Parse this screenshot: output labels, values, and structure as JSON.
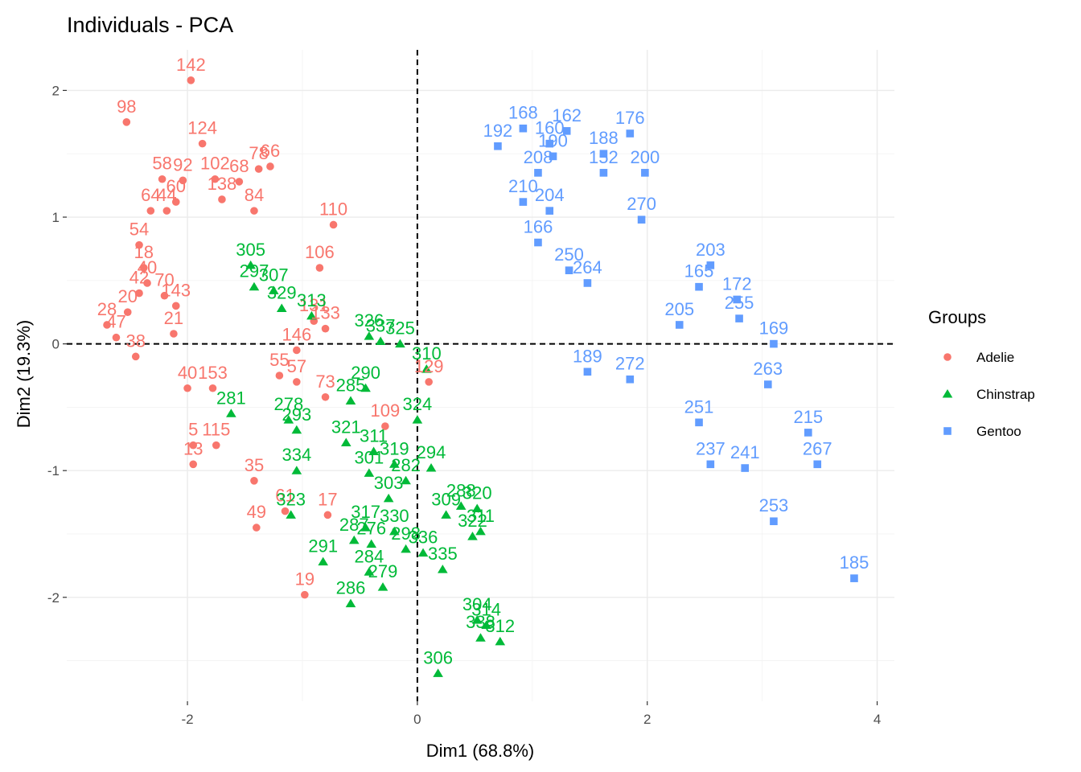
{
  "chart_data": {
    "type": "scatter",
    "title": "Individuals - PCA",
    "xlabel": "Dim1 (68.8%)",
    "ylabel": "Dim2 (19.3%)",
    "xlim": [
      -3.05,
      4.15
    ],
    "ylim": [
      -2.82,
      2.32
    ],
    "xticks": [
      -2,
      0,
      2,
      4
    ],
    "yticks": [
      -2,
      -1,
      0,
      1,
      2
    ],
    "xtick_labels": [
      "-2",
      "0",
      "2",
      "4"
    ],
    "ytick_labels": [
      "-2",
      "-1",
      "0",
      "1",
      "2"
    ],
    "grid": true,
    "reference_lines": {
      "x": 0,
      "y": 0,
      "style": "dashed"
    },
    "legend": {
      "title": "Groups",
      "position": "right",
      "entries": [
        "Adelie",
        "Chinstrap",
        "Gentoo"
      ]
    },
    "series": [
      {
        "name": "Adelie",
        "color": "#F8766D",
        "marker": "circle",
        "points": [
          {
            "label": "142",
            "x": -1.97,
            "y": 2.08
          },
          {
            "label": "98",
            "x": -2.53,
            "y": 1.75
          },
          {
            "label": "124",
            "x": -1.87,
            "y": 1.58
          },
          {
            "label": "78",
            "x": -1.38,
            "y": 1.38
          },
          {
            "label": "66",
            "x": -1.28,
            "y": 1.4
          },
          {
            "label": "58",
            "x": -2.22,
            "y": 1.3
          },
          {
            "label": "92",
            "x": -2.04,
            "y": 1.29
          },
          {
            "label": "102",
            "x": -1.76,
            "y": 1.3
          },
          {
            "label": "68",
            "x": -1.55,
            "y": 1.28
          },
          {
            "label": "60",
            "x": -2.1,
            "y": 1.12
          },
          {
            "label": "138",
            "x": -1.7,
            "y": 1.14
          },
          {
            "label": "64",
            "x": -2.32,
            "y": 1.05
          },
          {
            "label": "44",
            "x": -2.18,
            "y": 1.05
          },
          {
            "label": "84",
            "x": -1.42,
            "y": 1.05
          },
          {
            "label": "110",
            "x": -0.73,
            "y": 0.94
          },
          {
            "label": "54",
            "x": -2.42,
            "y": 0.78
          },
          {
            "label": "18",
            "x": -2.38,
            "y": 0.6
          },
          {
            "label": "40",
            "x": -2.35,
            "y": 0.48
          },
          {
            "label": "42",
            "x": -2.42,
            "y": 0.4
          },
          {
            "label": "70",
            "x": -2.2,
            "y": 0.38
          },
          {
            "label": "106",
            "x": -0.85,
            "y": 0.6
          },
          {
            "label": "20",
            "x": -2.52,
            "y": 0.25
          },
          {
            "label": "143",
            "x": -2.1,
            "y": 0.3
          },
          {
            "label": "28",
            "x": -2.7,
            "y": 0.15
          },
          {
            "label": "47",
            "x": -2.62,
            "y": 0.05
          },
          {
            "label": "21",
            "x": -2.12,
            "y": 0.08
          },
          {
            "label": "38",
            "x": -2.45,
            "y": -0.1
          },
          {
            "label": "131",
            "x": -0.9,
            "y": 0.18
          },
          {
            "label": "133",
            "x": -0.8,
            "y": 0.12
          },
          {
            "label": "146",
            "x": -1.05,
            "y": -0.05
          },
          {
            "label": "40",
            "x": -2.0,
            "y": -0.35
          },
          {
            "label": "153",
            "x": -1.78,
            "y": -0.35
          },
          {
            "label": "55",
            "x": -1.2,
            "y": -0.25
          },
          {
            "label": "57",
            "x": -1.05,
            "y": -0.3
          },
          {
            "label": "73",
            "x": -0.8,
            "y": -0.42
          },
          {
            "label": "109",
            "x": -0.28,
            "y": -0.65
          },
          {
            "label": "129",
            "x": 0.1,
            "y": -0.3
          },
          {
            "label": "5",
            "x": -1.95,
            "y": -0.8
          },
          {
            "label": "115",
            "x": -1.75,
            "y": -0.8
          },
          {
            "label": "13",
            "x": -1.95,
            "y": -0.95
          },
          {
            "label": "35",
            "x": -1.42,
            "y": -1.08
          },
          {
            "label": "61",
            "x": -1.15,
            "y": -1.32
          },
          {
            "label": "17",
            "x": -0.78,
            "y": -1.35
          },
          {
            "label": "49",
            "x": -1.4,
            "y": -1.45
          },
          {
            "label": "19",
            "x": -0.98,
            "y": -1.98
          }
        ]
      },
      {
        "name": "Chinstrap",
        "color": "#00BA38",
        "marker": "triangle",
        "points": [
          {
            "label": "305",
            "x": -1.45,
            "y": 0.62
          },
          {
            "label": "297",
            "x": -1.42,
            "y": 0.45
          },
          {
            "label": "307",
            "x": -1.25,
            "y": 0.42
          },
          {
            "label": "329",
            "x": -1.18,
            "y": 0.28
          },
          {
            "label": "313",
            "x": -0.92,
            "y": 0.22
          },
          {
            "label": "326",
            "x": -0.42,
            "y": 0.06
          },
          {
            "label": "337",
            "x": -0.32,
            "y": 0.02
          },
          {
            "label": "325",
            "x": -0.15,
            "y": 0.0
          },
          {
            "label": "310",
            "x": 0.08,
            "y": -0.2
          },
          {
            "label": "290",
            "x": -0.45,
            "y": -0.35
          },
          {
            "label": "285",
            "x": -0.58,
            "y": -0.45
          },
          {
            "label": "281",
            "x": -1.62,
            "y": -0.55
          },
          {
            "label": "278",
            "x": -1.12,
            "y": -0.6
          },
          {
            "label": "293",
            "x": -1.05,
            "y": -0.68
          },
          {
            "label": "324",
            "x": 0.0,
            "y": -0.6
          },
          {
            "label": "321",
            "x": -0.62,
            "y": -0.78
          },
          {
            "label": "311",
            "x": -0.38,
            "y": -0.85
          },
          {
            "label": "334",
            "x": -1.05,
            "y": -1.0
          },
          {
            "label": "319",
            "x": -0.2,
            "y": -0.95
          },
          {
            "label": "294",
            "x": 0.12,
            "y": -0.98
          },
          {
            "label": "301",
            "x": -0.42,
            "y": -1.02
          },
          {
            "label": "282",
            "x": -0.1,
            "y": -1.08
          },
          {
            "label": "288",
            "x": 0.38,
            "y": -1.28
          },
          {
            "label": "320",
            "x": 0.52,
            "y": -1.3
          },
          {
            "label": "323",
            "x": -1.1,
            "y": -1.35
          },
          {
            "label": "303",
            "x": -0.25,
            "y": -1.22
          },
          {
            "label": "309",
            "x": 0.25,
            "y": -1.35
          },
          {
            "label": "317",
            "x": -0.45,
            "y": -1.45
          },
          {
            "label": "330",
            "x": -0.2,
            "y": -1.48
          },
          {
            "label": "322",
            "x": 0.48,
            "y": -1.52
          },
          {
            "label": "311",
            "x": 0.55,
            "y": -1.48
          },
          {
            "label": "287",
            "x": -0.55,
            "y": -1.55
          },
          {
            "label": "276",
            "x": -0.4,
            "y": -1.58
          },
          {
            "label": "298",
            "x": -0.1,
            "y": -1.62
          },
          {
            "label": "336",
            "x": 0.05,
            "y": -1.65
          },
          {
            "label": "291",
            "x": -0.82,
            "y": -1.72
          },
          {
            "label": "335",
            "x": 0.22,
            "y": -1.78
          },
          {
            "label": "284",
            "x": -0.42,
            "y": -1.8
          },
          {
            "label": "279",
            "x": -0.3,
            "y": -1.92
          },
          {
            "label": "286",
            "x": -0.58,
            "y": -2.05
          },
          {
            "label": "304",
            "x": 0.52,
            "y": -2.18
          },
          {
            "label": "314",
            "x": 0.6,
            "y": -2.22
          },
          {
            "label": "338",
            "x": 0.55,
            "y": -2.32
          },
          {
            "label": "312",
            "x": 0.72,
            "y": -2.35
          },
          {
            "label": "306",
            "x": 0.18,
            "y": -2.6
          }
        ]
      },
      {
        "name": "Gentoo",
        "color": "#619CFF",
        "marker": "square",
        "points": [
          {
            "label": "168",
            "x": 0.92,
            "y": 1.7
          },
          {
            "label": "162",
            "x": 1.3,
            "y": 1.68
          },
          {
            "label": "176",
            "x": 1.85,
            "y": 1.66
          },
          {
            "label": "192",
            "x": 0.7,
            "y": 1.56
          },
          {
            "label": "160",
            "x": 1.15,
            "y": 1.58
          },
          {
            "label": "190",
            "x": 1.18,
            "y": 1.48
          },
          {
            "label": "188",
            "x": 1.62,
            "y": 1.5
          },
          {
            "label": "200",
            "x": 1.98,
            "y": 1.35
          },
          {
            "label": "208",
            "x": 1.05,
            "y": 1.35
          },
          {
            "label": "152",
            "x": 1.62,
            "y": 1.35
          },
          {
            "label": "210",
            "x": 0.92,
            "y": 1.12
          },
          {
            "label": "204",
            "x": 1.15,
            "y": 1.05
          },
          {
            "label": "270",
            "x": 1.95,
            "y": 0.98
          },
          {
            "label": "166",
            "x": 1.05,
            "y": 0.8
          },
          {
            "label": "203",
            "x": 2.55,
            "y": 0.62
          },
          {
            "label": "250",
            "x": 1.32,
            "y": 0.58
          },
          {
            "label": "264",
            "x": 1.48,
            "y": 0.48
          },
          {
            "label": "165",
            "x": 2.45,
            "y": 0.45
          },
          {
            "label": "172",
            "x": 2.78,
            "y": 0.35
          },
          {
            "label": "205",
            "x": 2.28,
            "y": 0.15
          },
          {
            "label": "255",
            "x": 2.8,
            "y": 0.2
          },
          {
            "label": "169",
            "x": 3.1,
            "y": 0.0
          },
          {
            "label": "189",
            "x": 1.48,
            "y": -0.22
          },
          {
            "label": "272",
            "x": 1.85,
            "y": -0.28
          },
          {
            "label": "263",
            "x": 3.05,
            "y": -0.32
          },
          {
            "label": "251",
            "x": 2.45,
            "y": -0.62
          },
          {
            "label": "215",
            "x": 3.4,
            "y": -0.7
          },
          {
            "label": "267",
            "x": 3.48,
            "y": -0.95
          },
          {
            "label": "237",
            "x": 2.55,
            "y": -0.95
          },
          {
            "label": "241",
            "x": 2.85,
            "y": -0.98
          },
          {
            "label": "253",
            "x": 3.1,
            "y": -1.4
          },
          {
            "label": "185",
            "x": 3.8,
            "y": -1.85
          }
        ]
      }
    ]
  }
}
